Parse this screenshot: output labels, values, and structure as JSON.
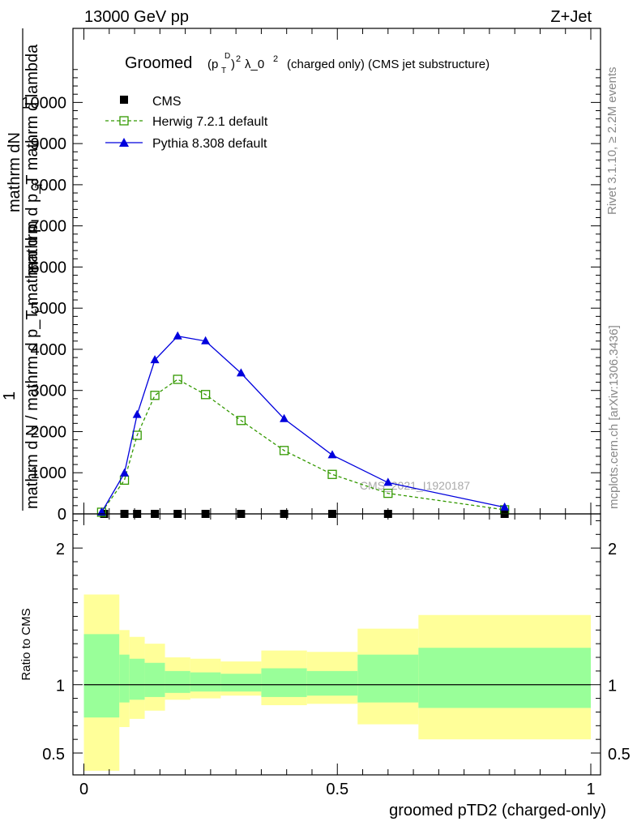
{
  "header": {
    "left": "13000 GeV pp",
    "right": "Z+Jet"
  },
  "side_texts": {
    "rivet": "Rivet 3.1.10, ≥ 2.2M events",
    "mcplots": "mcplots.cern.ch [arXiv:1306.3436]"
  },
  "watermark": "CMS_2021_I1920187",
  "colors": {
    "herwig": "#339900",
    "pythia": "#0000dd",
    "band_inner": "#99ff99",
    "band_outer": "#ffff99"
  },
  "chart_data": [
    {
      "type": "line",
      "title_main": "Groomed",
      "title_p": "(p",
      "title_T": "T",
      "title_D": "D",
      "title_close": ")",
      "title_sq": "2",
      "title_lam": "λ_0",
      "title_sq2": "2",
      "title_rest": "(charged only) (CMS jet substructure)",
      "ylabel_num": "mathrm dN",
      "ylabel_num2": "mathrm d p_T mathrm d lambda",
      "ylabel_num2_sub": "T",
      "ylabel_one": "1",
      "ylabel_den": "mathrm d N / mathrm d p_T mathrm d p",
      "ylabel_den_sub": "T",
      "ylim": [
        0,
        11800
      ],
      "y_ticks": [
        0,
        1000,
        2000,
        3000,
        4000,
        5000,
        6000,
        7000,
        8000,
        9000,
        10000
      ],
      "y_tick_labels": [
        "0",
        "1000",
        "2000",
        "3000",
        "4000",
        "5000",
        "6000",
        "7000",
        "8000",
        "9000",
        "10000"
      ],
      "xlim": [
        0,
        1
      ],
      "series": [
        {
          "name": "CMS",
          "marker": "square-filled",
          "x": [
            0.04,
            0.08,
            0.105,
            0.14,
            0.185,
            0.24,
            0.31,
            0.395,
            0.49,
            0.6,
            0.83
          ],
          "values": [
            0,
            0,
            0,
            0,
            0,
            0,
            0,
            0,
            0,
            0,
            0
          ]
        },
        {
          "name": "Herwig 7.2.1 default",
          "marker": "square-open",
          "x": [
            0.035,
            0.08,
            0.105,
            0.14,
            0.185,
            0.24,
            0.31,
            0.395,
            0.49,
            0.6,
            0.83
          ],
          "values": [
            40,
            820,
            1910,
            2880,
            3270,
            2900,
            2270,
            1540,
            960,
            500,
            100
          ]
        },
        {
          "name": "Pythia 8.308 default",
          "marker": "triangle-filled",
          "x": [
            0.035,
            0.08,
            0.105,
            0.14,
            0.185,
            0.24,
            0.31,
            0.395,
            0.49,
            0.6,
            0.83
          ],
          "values": [
            40,
            990,
            2410,
            3740,
            4320,
            4200,
            3420,
            2310,
            1430,
            760,
            160
          ]
        }
      ],
      "legend": [
        "CMS",
        "Herwig 7.2.1 default",
        "Pythia 8.308 default"
      ],
      "legend_position": "top-left"
    },
    {
      "type": "area",
      "ylabel": "Ratio to CMS",
      "xlabel": "groomed pTD2 (charged-only)",
      "ylim": [
        0.34,
        2.25
      ],
      "xlim": [
        0,
        1
      ],
      "y_ticks": [
        0.5,
        1,
        2
      ],
      "y_tick_labels": [
        "0.5",
        "1",
        "2"
      ],
      "x_ticks": [
        0,
        0.5,
        1
      ],
      "x_tick_labels": [
        "0",
        "0.5",
        "1"
      ],
      "reference_line": 1,
      "bins": [
        0,
        0.07,
        0.09,
        0.12,
        0.16,
        0.21,
        0.27,
        0.35,
        0.44,
        0.54,
        0.66,
        1.0
      ],
      "inner_up": [
        1.37,
        1.22,
        1.19,
        1.16,
        1.1,
        1.09,
        1.08,
        1.12,
        1.1,
        1.22,
        1.27
      ],
      "inner_dn": [
        0.76,
        0.87,
        0.89,
        0.91,
        0.94,
        0.95,
        0.95,
        0.91,
        0.92,
        0.87,
        0.83
      ],
      "outer_up": [
        1.66,
        1.4,
        1.35,
        1.3,
        1.2,
        1.19,
        1.17,
        1.25,
        1.24,
        1.41,
        1.51
      ],
      "outer_dn": [
        0.37,
        0.69,
        0.75,
        0.81,
        0.89,
        0.9,
        0.92,
        0.85,
        0.86,
        0.71,
        0.6
      ]
    }
  ]
}
